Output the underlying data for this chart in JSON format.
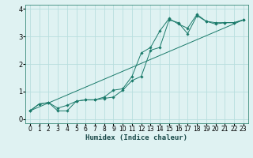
{
  "background_color": "#dff2f2",
  "grid_color": "#b8dede",
  "line_color": "#1a7a6a",
  "marker_color": "#1a7a6a",
  "xlabel": "Humidex (Indice chaleur)",
  "xlim": [
    -0.5,
    23.5
  ],
  "ylim": [
    -0.15,
    4.15
  ],
  "xticks": [
    0,
    1,
    2,
    3,
    4,
    5,
    6,
    7,
    8,
    9,
    10,
    11,
    12,
    13,
    14,
    15,
    16,
    17,
    18,
    19,
    20,
    21,
    22,
    23
  ],
  "yticks": [
    0,
    1,
    2,
    3,
    4
  ],
  "series1_x": [
    0,
    1,
    2,
    3,
    4,
    5,
    6,
    7,
    8,
    9,
    10,
    11,
    12,
    13,
    14,
    15,
    16,
    17,
    18,
    19,
    20,
    21,
    22,
    23
  ],
  "series1_y": [
    0.3,
    0.55,
    0.6,
    0.3,
    0.3,
    0.65,
    0.7,
    0.7,
    0.75,
    0.8,
    1.05,
    1.4,
    1.55,
    2.5,
    2.6,
    3.6,
    3.5,
    3.1,
    3.75,
    3.55,
    3.45,
    3.5,
    3.5,
    3.6
  ],
  "series2_x": [
    0,
    1,
    2,
    3,
    4,
    5,
    6,
    7,
    8,
    9,
    10,
    11,
    12,
    13,
    14,
    15,
    16,
    17,
    18,
    19,
    20,
    21,
    22,
    23
  ],
  "series2_y": [
    0.3,
    0.55,
    0.6,
    0.4,
    0.5,
    0.65,
    0.7,
    0.7,
    0.8,
    1.05,
    1.1,
    1.55,
    2.4,
    2.6,
    3.2,
    3.65,
    3.45,
    3.3,
    3.8,
    3.55,
    3.5,
    3.5,
    3.5,
    3.6
  ],
  "series3_x": [
    0,
    23
  ],
  "series3_y": [
    0.3,
    3.6
  ],
  "tick_fontsize": 5.5,
  "xlabel_fontsize": 6.5
}
